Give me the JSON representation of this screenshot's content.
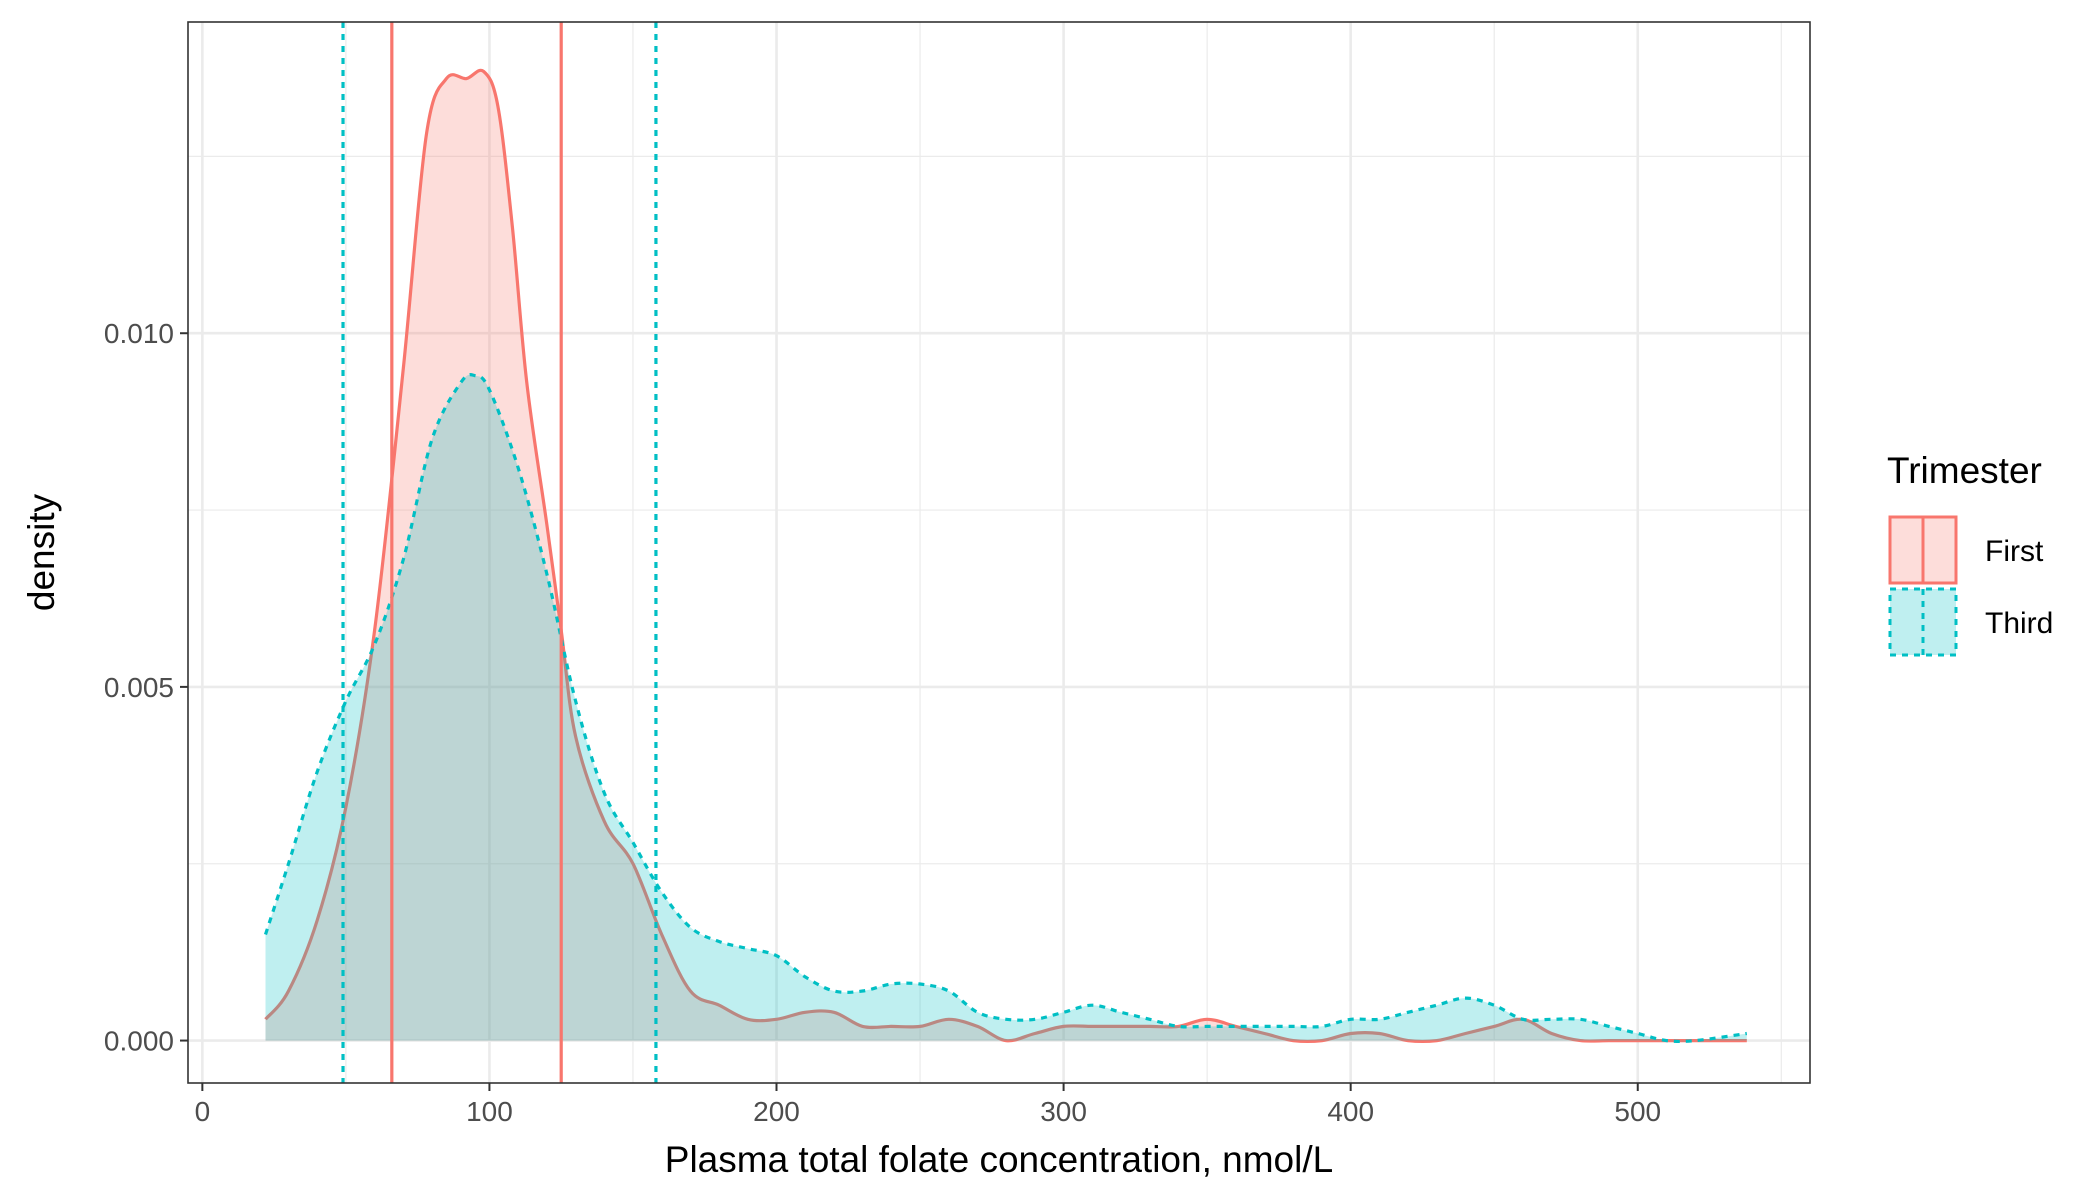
{
  "chart_data": {
    "type": "area",
    "xlabel": "Plasma total folate concentration, nmol/L",
    "ylabel": "density",
    "xlim": [
      -5,
      560
    ],
    "ylim": [
      -0.0006,
      0.0144
    ],
    "x_ticks": [
      0,
      100,
      200,
      300,
      400,
      500
    ],
    "x_tick_labels": [
      "0",
      "100",
      "200",
      "300",
      "400",
      "500"
    ],
    "x_minor_ticks": [
      50,
      150,
      250,
      350,
      450,
      550
    ],
    "y_ticks": [
      0.0,
      0.005,
      0.01
    ],
    "y_tick_labels": [
      "0.000",
      "0.005",
      "0.010"
    ],
    "y_minor_ticks": [
      0.0025,
      0.0075,
      0.0125
    ],
    "grid": true,
    "legend": {
      "title": "Trimester",
      "placement": "right"
    },
    "series": [
      {
        "name": "First",
        "color": "#F8766D",
        "fill": "#F8766D",
        "fill_opacity": 0.25,
        "line_style": "solid",
        "x": [
          22,
          30,
          40,
          50,
          60,
          70,
          78,
          85,
          92,
          98,
          103,
          108,
          113,
          120,
          125,
          130,
          140,
          150,
          160,
          170,
          180,
          190,
          200,
          210,
          220,
          230,
          240,
          250,
          260,
          270,
          280,
          290,
          300,
          310,
          320,
          330,
          340,
          350,
          360,
          370,
          380,
          390,
          400,
          410,
          420,
          430,
          440,
          450,
          460,
          470,
          480,
          490,
          500,
          510,
          520,
          538
        ],
        "y": [
          0.0003,
          0.0007,
          0.0017,
          0.0033,
          0.0058,
          0.0095,
          0.0128,
          0.0136,
          0.0136,
          0.0137,
          0.0132,
          0.0115,
          0.0093,
          0.0073,
          0.0058,
          0.0043,
          0.0031,
          0.0025,
          0.0015,
          0.0007,
          0.0005,
          0.0003,
          0.0003,
          0.0004,
          0.0004,
          0.0002,
          0.0002,
          0.0002,
          0.0003,
          0.0002,
          0.0,
          0.0001,
          0.0002,
          0.0002,
          0.0002,
          0.0002,
          0.0002,
          0.0003,
          0.0002,
          0.0001,
          0.0,
          0.0,
          0.0001,
          0.0001,
          0.0,
          0.0,
          0.0001,
          0.0002,
          0.0003,
          0.0001,
          0.0,
          0.0,
          0.0,
          0.0,
          0.0,
          0.0
        ]
      },
      {
        "name": "Third",
        "color": "#00BFC4",
        "fill": "#00BFC4",
        "fill_opacity": 0.25,
        "line_style": "dotted",
        "x": [
          22,
          30,
          40,
          50,
          60,
          70,
          80,
          90,
          95,
          100,
          110,
          120,
          130,
          140,
          150,
          160,
          170,
          180,
          190,
          200,
          210,
          220,
          230,
          240,
          250,
          260,
          270,
          280,
          290,
          300,
          310,
          320,
          330,
          340,
          350,
          360,
          370,
          380,
          390,
          400,
          410,
          420,
          430,
          440,
          450,
          460,
          470,
          480,
          490,
          500,
          510,
          520,
          538
        ],
        "y": [
          0.0015,
          0.0025,
          0.0038,
          0.0048,
          0.0056,
          0.0068,
          0.0085,
          0.0093,
          0.0094,
          0.0092,
          0.0081,
          0.0066,
          0.0048,
          0.0035,
          0.0028,
          0.0021,
          0.0016,
          0.0014,
          0.0013,
          0.0012,
          0.0009,
          0.0007,
          0.0007,
          0.0008,
          0.0008,
          0.0007,
          0.0004,
          0.0003,
          0.0003,
          0.0004,
          0.0005,
          0.0004,
          0.0003,
          0.0002,
          0.0002,
          0.0002,
          0.0002,
          0.0002,
          0.0002,
          0.0003,
          0.0003,
          0.0004,
          0.0005,
          0.0006,
          0.0005,
          0.0003,
          0.0003,
          0.0003,
          0.0002,
          0.0001,
          0.0,
          0.0,
          0.0001
        ]
      }
    ],
    "vlines": [
      {
        "series": "First",
        "x": 66,
        "color": "#F8766D",
        "line_style": "solid"
      },
      {
        "series": "First",
        "x": 125,
        "color": "#F8766D",
        "line_style": "solid"
      },
      {
        "series": "Third",
        "x": 49,
        "color": "#00BFC4",
        "line_style": "dotted"
      },
      {
        "series": "Third",
        "x": 158,
        "color": "#00BFC4",
        "line_style": "dotted"
      }
    ]
  }
}
